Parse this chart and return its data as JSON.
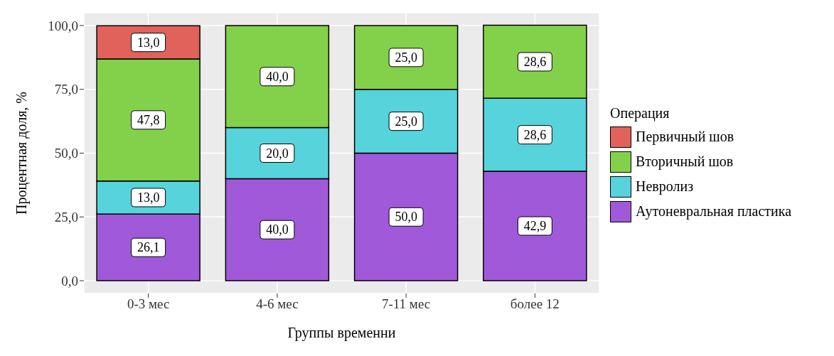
{
  "chart_data": {
    "type": "bar",
    "stacked": true,
    "xlabel": "Группы временни",
    "ylabel": "Процентная доля, %",
    "legend_title": "Операция",
    "legend": "right",
    "grid": true,
    "categories": [
      "0-3 мес",
      "4-6 мес",
      "7-11 мес",
      "более 12"
    ],
    "ylim": [
      -5,
      105
    ],
    "yticks": [
      {
        "value": 0,
        "label": "0,0"
      },
      {
        "value": 25,
        "label": "25,0"
      },
      {
        "value": 50,
        "label": "50,0"
      },
      {
        "value": 75,
        "label": "75,0"
      },
      {
        "value": 100,
        "label": "100,0"
      }
    ],
    "series": [
      {
        "name": "Аутоневральная пластика",
        "color": "#a05ad9",
        "values": [
          26.1,
          40,
          50,
          42.9
        ],
        "value_labels": [
          "26,1",
          "40,0",
          "50,0",
          "42,9"
        ]
      },
      {
        "name": "Невролиз",
        "color": "#56d3db",
        "values": [
          13,
          20,
          25,
          28.6
        ],
        "value_labels": [
          "13,0",
          "20,0",
          "25,0",
          "28,6"
        ]
      },
      {
        "name": "Вторичный шов",
        "color": "#83d14b",
        "values": [
          47.8,
          40,
          25,
          28.6
        ],
        "value_labels": [
          "47,8",
          "40,0",
          "25,0",
          "28,6"
        ]
      },
      {
        "name": "Первичный шов",
        "color": "#e0625a",
        "values": [
          13,
          null,
          null,
          null
        ],
        "value_labels": [
          "13,0",
          null,
          null,
          null
        ]
      }
    ]
  }
}
